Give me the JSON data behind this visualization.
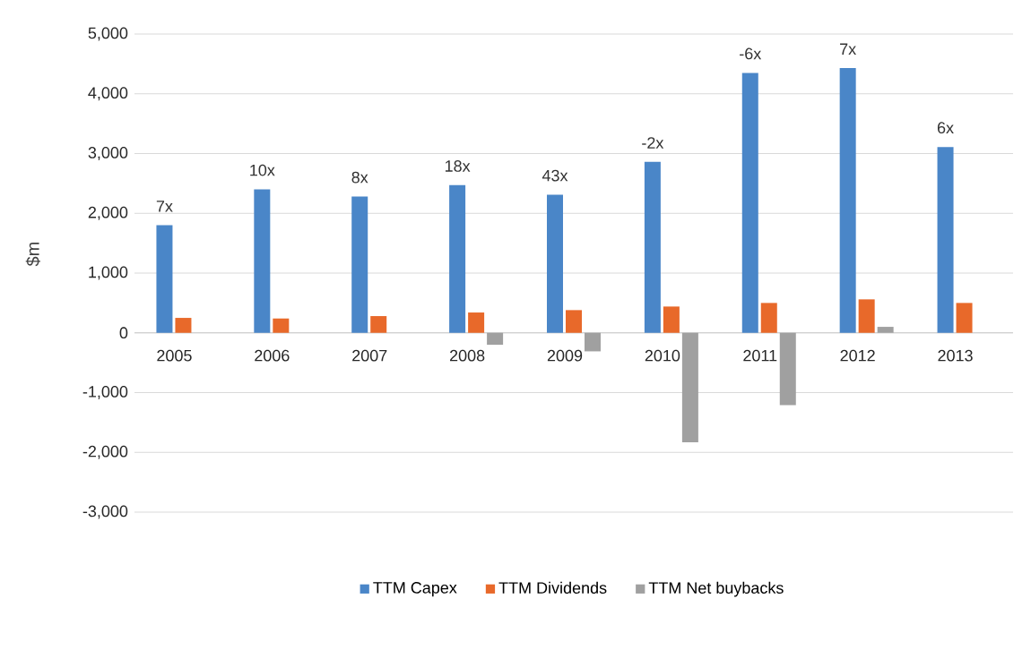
{
  "chart_data": {
    "type": "bar",
    "ylabel": "$m",
    "categories": [
      "2005",
      "2006",
      "2007",
      "2008",
      "2009",
      "2010",
      "2011",
      "2012",
      "2013"
    ],
    "series": [
      {
        "name": "TTM Capex",
        "color": "#4a86c8",
        "values": [
          1800,
          2400,
          2280,
          2470,
          2310,
          2860,
          4350,
          4430,
          3110
        ]
      },
      {
        "name": "TTM Dividends",
        "color": "#e8692a",
        "values": [
          250,
          240,
          280,
          340,
          380,
          440,
          500,
          560,
          500
        ]
      },
      {
        "name": "TTM Net buybacks",
        "color": "#a0a0a0",
        "values": [
          null,
          null,
          null,
          -200,
          -310,
          -1830,
          -1210,
          100,
          null
        ]
      }
    ],
    "annotations": [
      "7x",
      "10x",
      "8x",
      "18x",
      "43x",
      "-2x",
      "-6x",
      "7x",
      "6x"
    ],
    "ylim": [
      -3000,
      5000
    ],
    "yticks": [
      {
        "value": -3000,
        "label": "-3,000"
      },
      {
        "value": -2000,
        "label": "-2,000"
      },
      {
        "value": -1000,
        "label": "-1,000"
      },
      0,
      {
        "value": 1000,
        "label": "1,000"
      },
      {
        "value": 2000,
        "label": "2,000"
      },
      {
        "value": 3000,
        "label": "3,000"
      },
      {
        "value": 4000,
        "label": "4,000"
      },
      {
        "value": 5000,
        "label": "5,000"
      }
    ],
    "grid": "y",
    "legend": "bottom"
  }
}
